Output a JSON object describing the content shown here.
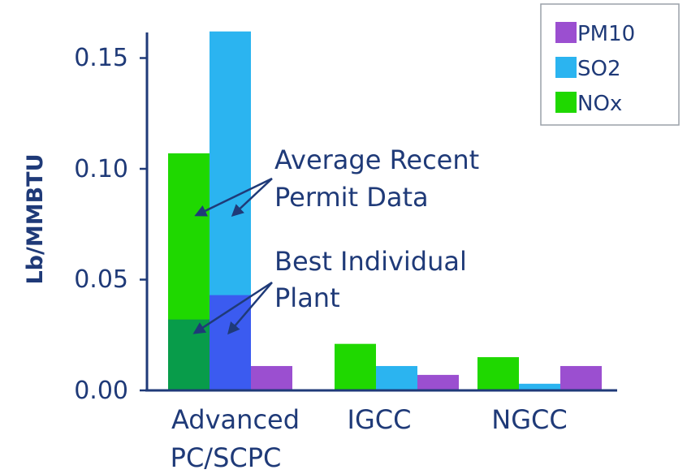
{
  "chart_data": {
    "type": "bar",
    "ylabel": "Lb/MMBTU",
    "ylim": [
      0,
      0.16
    ],
    "yticks": [
      "0.00",
      "0.05",
      "0.10",
      "0.15"
    ],
    "ytick_values": [
      0,
      0.05,
      0.1,
      0.15
    ],
    "categories": [
      {
        "lines": [
          "Advanced",
          "PC/SCPC"
        ]
      },
      {
        "lines": [
          "IGCC"
        ]
      },
      {
        "lines": [
          "NGCC"
        ]
      }
    ],
    "series": [
      {
        "name": "NOx",
        "color": "#1fd800",
        "values": [
          0.107,
          0.021,
          0.015
        ]
      },
      {
        "name": "SO2",
        "color": "#2bb4f0",
        "values": [
          0.162,
          0.011,
          0.003
        ]
      },
      {
        "name": "PM10",
        "color": "#9b4fd0",
        "values": [
          0.011,
          0.007,
          0.011
        ]
      }
    ],
    "best_individual_plant": {
      "category": "Advanced PC/SCPC",
      "colors": {
        "NOx": "#089c4a",
        "SO2": "#3b5bf0"
      },
      "values": {
        "NOx": 0.032,
        "SO2": 0.043
      }
    },
    "legend": {
      "placement": "top-right",
      "entries": [
        {
          "label": "PM10",
          "color": "#9b4fd0"
        },
        {
          "label": "SO2",
          "color": "#2bb4f0"
        },
        {
          "label": "NOx",
          "color": "#1fd800"
        }
      ]
    },
    "annotations": [
      {
        "lines": [
          "Average Recent",
          "Permit Data"
        ]
      },
      {
        "lines": [
          "Best  Individual",
          "Plant"
        ]
      }
    ],
    "colors": {
      "axis": "#1f3a78",
      "arrow": "#1f3a78"
    },
    "grid": false
  }
}
